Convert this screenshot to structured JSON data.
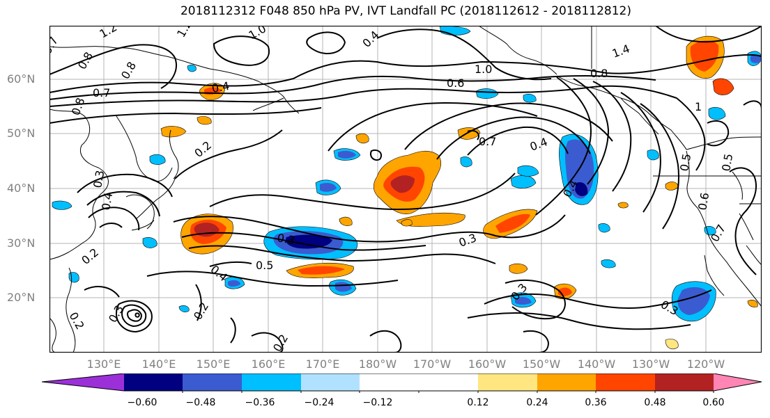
{
  "title": "2018112312 F048 850 hPa PV, IVT Landfall PC (2018112612 - 2018112812)",
  "map": {
    "lat_labels": [
      "60°N",
      "50°N",
      "40°N",
      "30°N",
      "20°N"
    ],
    "lon_labels": [
      "130°E",
      "140°E",
      "150°E",
      "160°E",
      "170°E",
      "180°W",
      "170°W",
      "160°W",
      "150°W",
      "140°W",
      "130°W",
      "120°W"
    ],
    "contour_labels": [
      "1.2",
      "1.2",
      "1.0",
      "0.7",
      "0.8",
      "0.8",
      "0.7",
      "0.8",
      "0.4",
      "0.4",
      "1.0",
      "0.6",
      "1.4",
      "0.8",
      "1",
      "0.2",
      "0.7",
      "0.4",
      "0.4",
      "0.5",
      "0.3",
      "0.5",
      "0.4",
      "0.3",
      "0.3",
      "0.3",
      "0.2",
      "0.2",
      "0.3",
      "0.2",
      "0.2",
      "0.4",
      "0.3",
      "0.5",
      "0.6",
      "0.7"
    ]
  },
  "colorbar": {
    "colors": [
      "#9b30d9",
      "#000080",
      "#3a5cd0",
      "#00bfff",
      "#b0e2ff",
      "#ffffff",
      "#ffffff",
      "#ffe680",
      "#ffa500",
      "#ff4500",
      "#b22222",
      "#ff85b5"
    ],
    "tick_labels": [
      "−0.60",
      "−0.48",
      "−0.36",
      "−0.24",
      "−0.12",
      "0.12",
      "0.24",
      "0.36",
      "0.48",
      "0.60"
    ]
  }
}
